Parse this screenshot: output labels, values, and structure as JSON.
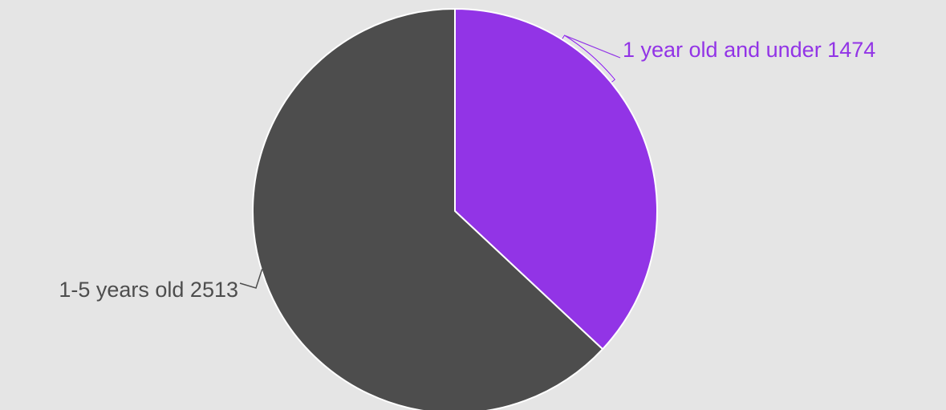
{
  "chart_data": {
    "type": "pie",
    "title": "",
    "slices": [
      {
        "label": "1 year old and under",
        "value": 1474,
        "color": "#9234e6"
      },
      {
        "label": "1-5 years old",
        "value": 2513,
        "color": "#4d4d4d"
      }
    ],
    "start_angle": "12 o'clock",
    "direction": "clockwise",
    "labels_outside": true,
    "slice_border_color": "#ffffff",
    "background": "#e5e5e5"
  }
}
